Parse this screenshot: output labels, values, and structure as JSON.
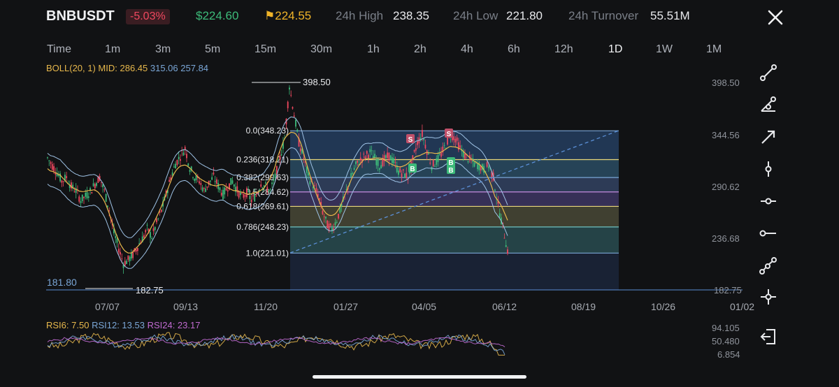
{
  "header": {
    "symbol": "BNBUSDT",
    "change": "-5.03%",
    "last_price": "$224.60",
    "mark_price": "224.55",
    "high_label": "24h High",
    "high_value": "238.35",
    "low_label": "24h Low",
    "low_value": "221.80",
    "turnover_label": "24h Turnover",
    "turnover_value": "55.51M",
    "colors": {
      "up": "#3dbb7a",
      "down": "#f0485f",
      "flag": "#f0b429"
    }
  },
  "timeframes": [
    "Time",
    "1m",
    "3m",
    "5m",
    "15m",
    "30m",
    "1h",
    "2h",
    "4h",
    "6h",
    "12h",
    "1D",
    "1W",
    "1M"
  ],
  "active_timeframe": "1D",
  "indicator": {
    "boll_label": "BOLL(20, 1) MID: 286.45",
    "boll_up": "315.06",
    "boll_dn": "257.84"
  },
  "price_axis": [
    "398.50",
    "344.56",
    "290.62",
    "236.68",
    "182.75"
  ],
  "date_axis": [
    "07/07",
    "09/13",
    "11/20",
    "01/27",
    "04/05",
    "06/12",
    "08/19",
    "10/26",
    "01/02"
  ],
  "annotations": {
    "high_marker": "398.50",
    "low_marker": "182.75",
    "left_low": "181.80"
  },
  "fib_levels": [
    {
      "label": "0.0(348.23)",
      "price": 348.23,
      "fill": "#26466a",
      "line": "#7aa6d6"
    },
    {
      "label": "0.236(318.21)",
      "price": 318.21,
      "fill": "#2f5a70",
      "line": "#e9d77a"
    },
    {
      "label": "0.382(299.63)",
      "price": 299.63,
      "fill": "#3a4d6e",
      "line": "#7aa6d6"
    },
    {
      "label": "0.5(284.62)",
      "price": 284.62,
      "fill": "#4a3a70",
      "line": "#c48be0"
    },
    {
      "label": "0.618(269.61)",
      "price": 269.61,
      "fill": "#5a5530",
      "line": "#e9d77a"
    },
    {
      "label": "0.786(248.23)",
      "price": 248.23,
      "fill": "#2d5a55",
      "line": "#6fc3c0"
    },
    {
      "label": "1.0(221.01)",
      "price": 221.01,
      "fill": "#2a3a5c",
      "line": "#7aa6d6"
    }
  ],
  "trade_marks": [
    "S",
    "S",
    "B",
    "B",
    "B"
  ],
  "rsi": {
    "rsi6": "RSI6: 7.50",
    "rsi12": "RSI12: 13.53",
    "rsi24": "RSI24: 23.17",
    "axis": [
      "94.105",
      "50.480",
      "6.854"
    ]
  },
  "tools": [
    "trend-line-icon",
    "ray-angle-icon",
    "arrow-line-icon",
    "vertical-line-icon",
    "horizontal-ray-icon",
    "horizontal-line-icon",
    "polyline-icon",
    "crosshair-icon",
    "exit-icon"
  ],
  "chart_data": {
    "type": "candlestick",
    "series": [
      {
        "name": "BNBUSDT",
        "values": [
          320,
          312,
          305,
          296,
          300,
          290,
          286,
          276,
          280,
          285,
          293,
          300,
          285,
          266,
          242,
          226,
          210,
          214,
          219,
          228,
          236,
          246,
          238,
          252,
          265,
          282,
          300,
          314,
          322,
          330,
          310,
          300,
          296,
          286,
          294,
          300,
          291,
          282,
          290,
          296,
          286,
          279,
          284,
          276,
          281,
          294,
          290,
          286,
          300,
          320,
          340,
          395,
          365,
          336,
          320,
          300,
          292,
          282,
          264,
          250,
          246,
          256,
          270,
          285,
          300,
          312,
          318,
          322,
          326,
          320,
          312,
          318,
          322,
          316,
          306,
          304,
          300,
          318,
          336,
          345,
          328,
          312,
          316,
          324,
          334,
          345,
          340,
          330,
          322,
          318,
          314,
          312,
          308,
          312,
          300,
          270,
          248,
          224
        ]
      }
    ],
    "ylim": [
      182.75,
      398.5
    ]
  }
}
